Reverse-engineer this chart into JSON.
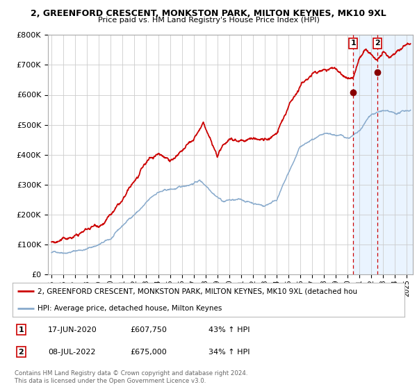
{
  "title": "2, GREENFORD CRESCENT, MONKSTON PARK, MILTON KEYNES, MK10 9XL",
  "subtitle": "Price paid vs. HM Land Registry's House Price Index (HPI)",
  "ylim": [
    0,
    800000
  ],
  "xlim": [
    1994.7,
    2025.5
  ],
  "ytick_labels": [
    "£0",
    "£100K",
    "£200K",
    "£300K",
    "£400K",
    "£500K",
    "£600K",
    "£700K",
    "£800K"
  ],
  "ytick_values": [
    0,
    100000,
    200000,
    300000,
    400000,
    500000,
    600000,
    700000,
    800000
  ],
  "xtick_years": [
    1995,
    1996,
    1997,
    1998,
    1999,
    2000,
    2001,
    2002,
    2003,
    2004,
    2005,
    2006,
    2007,
    2008,
    2009,
    2010,
    2011,
    2012,
    2013,
    2014,
    2015,
    2016,
    2017,
    2018,
    2019,
    2020,
    2021,
    2022,
    2023,
    2024,
    2025
  ],
  "red_line_color": "#cc0000",
  "blue_line_color": "#88aacc",
  "marker_color": "#880000",
  "shade_color": "#ddeeff",
  "vline_color": "#cc0000",
  "grid_color": "#cccccc",
  "annotation_box_color": "#cc0000",
  "background_color": "#ffffff",
  "point1_x": 2020.46,
  "point1_y": 607750,
  "point2_x": 2022.52,
  "point2_y": 675000,
  "vline1_x": 2020.46,
  "vline2_x": 2022.52,
  "shade_start": 2020.46,
  "shade_end": 2025.5,
  "legend1_text": "2, GREENFORD CRESCENT, MONKSTON PARK, MILTON KEYNES, MK10 9XL (detached hou",
  "legend2_text": "HPI: Average price, detached house, Milton Keynes",
  "table_row1": [
    "1",
    "17-JUN-2020",
    "£607,750",
    "43% ↑ HPI"
  ],
  "table_row2": [
    "2",
    "08-JUL-2022",
    "£675,000",
    "34% ↑ HPI"
  ],
  "footer1": "Contains HM Land Registry data © Crown copyright and database right 2024.",
  "footer2": "This data is licensed under the Open Government Licence v3.0."
}
